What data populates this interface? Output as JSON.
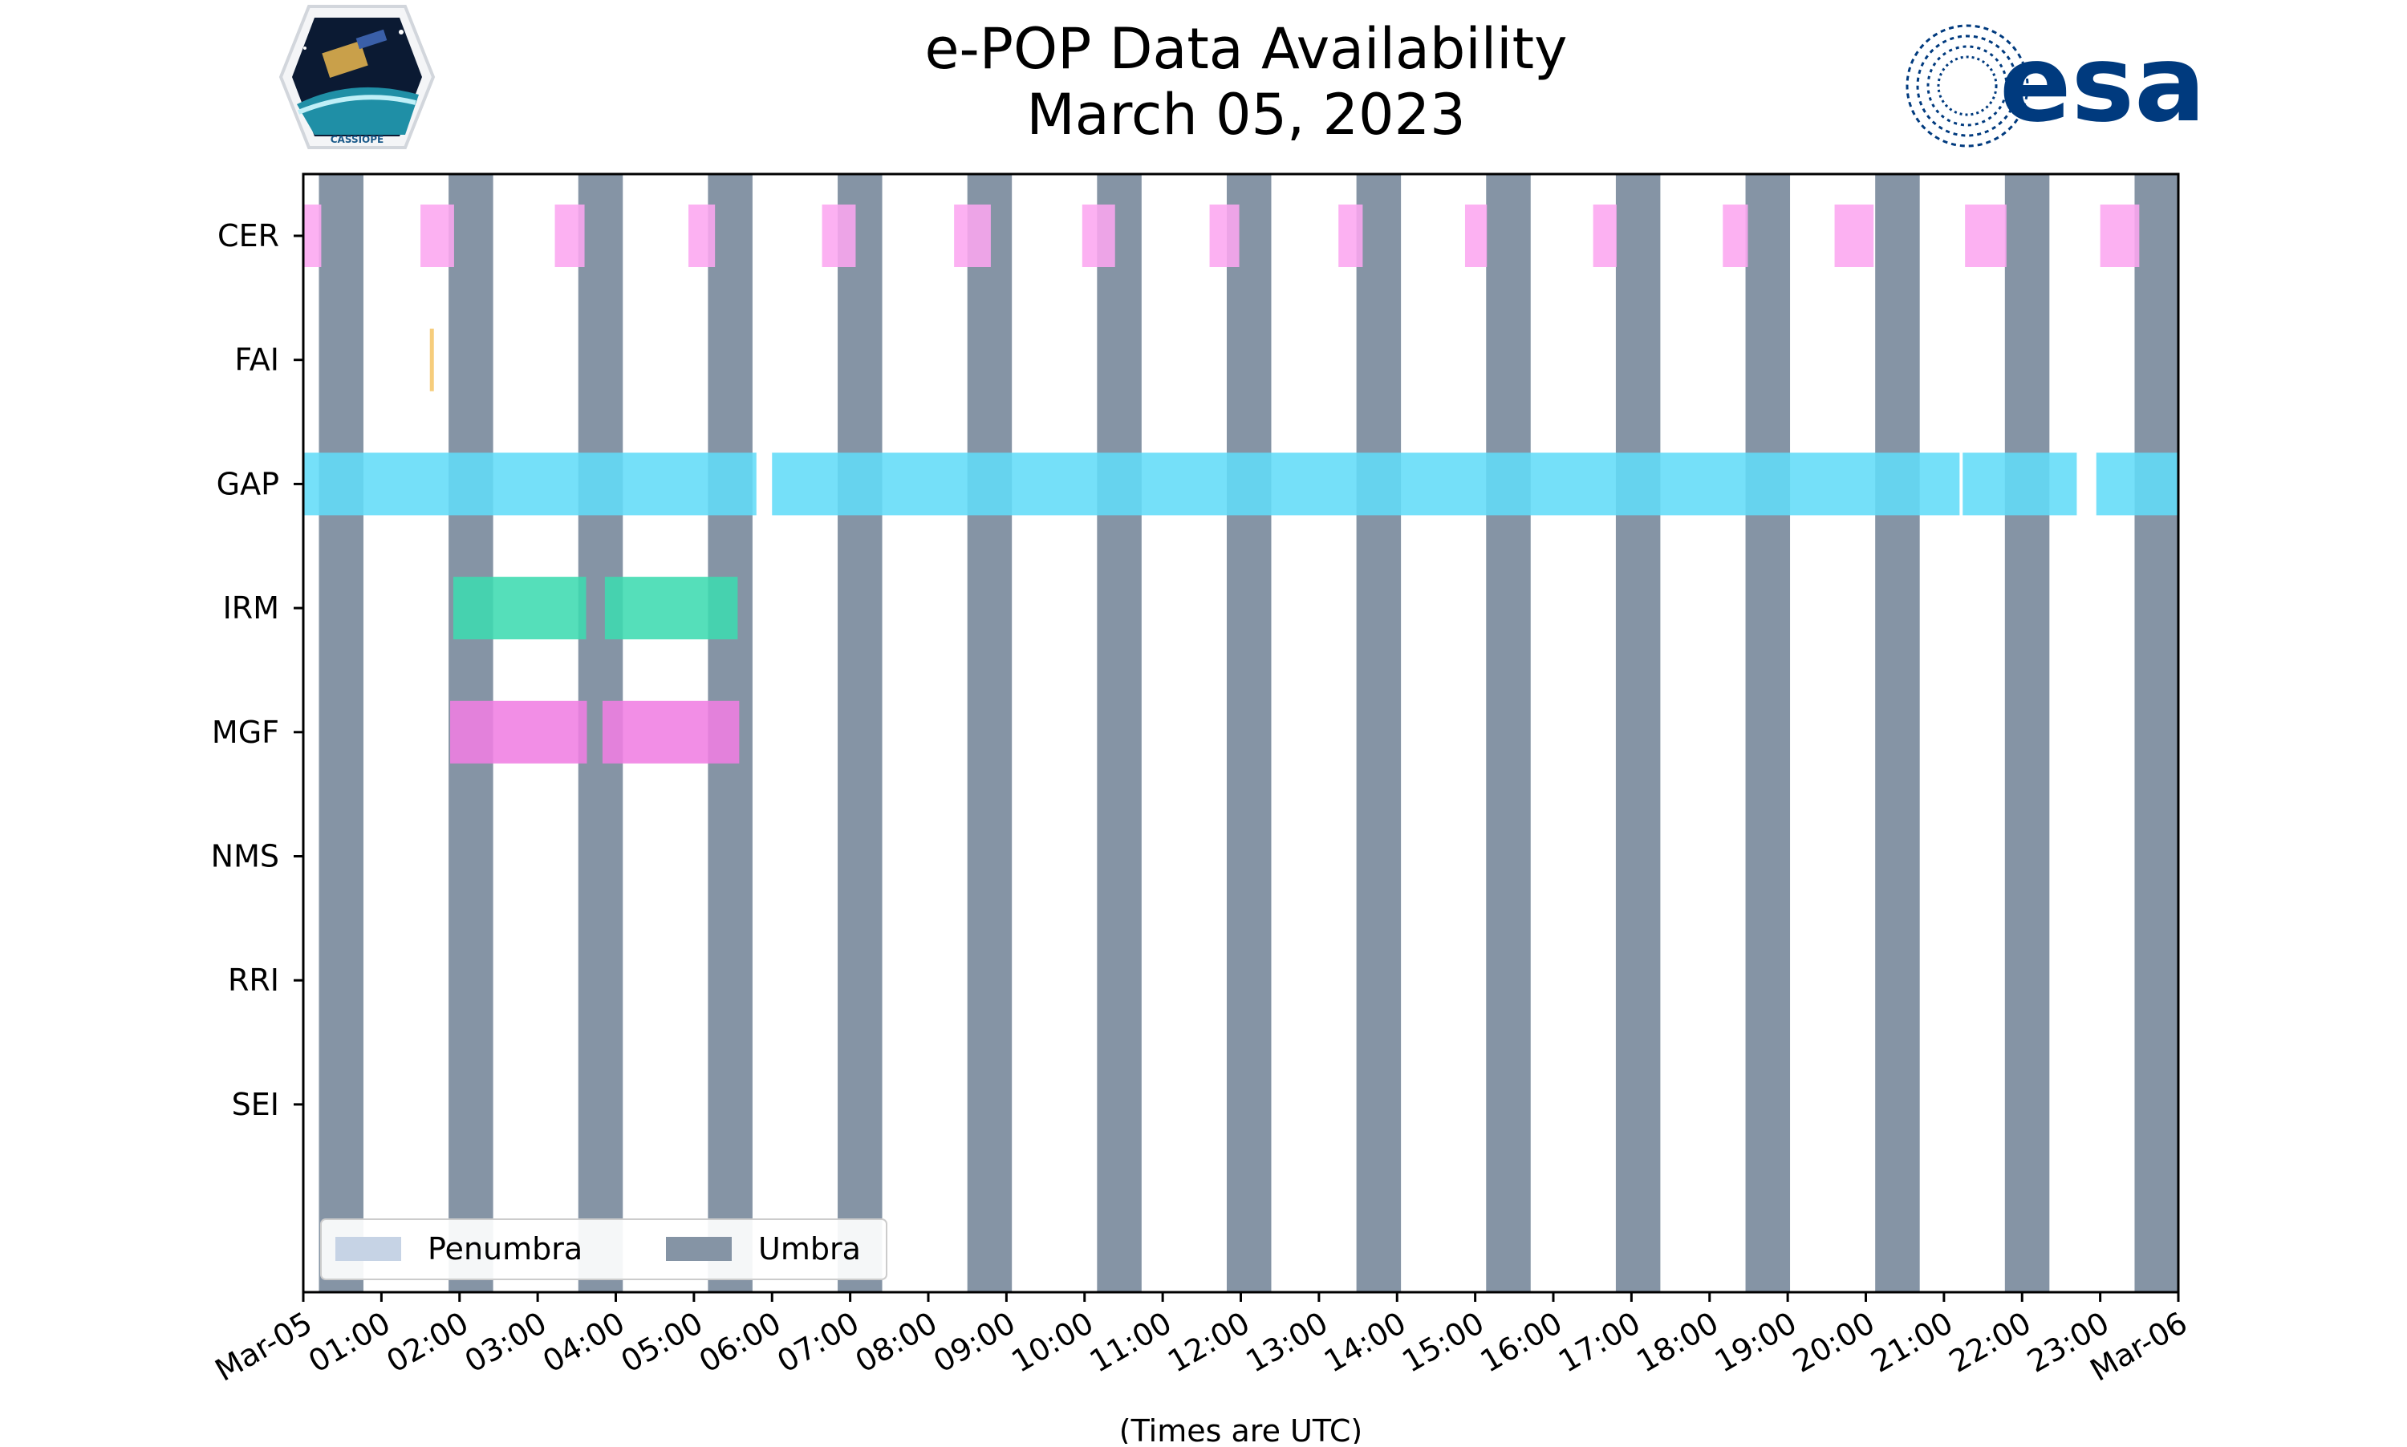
{
  "chart_data": {
    "type": "timeline",
    "title": [
      "e-POP Data Availability",
      "March 05, 2023"
    ],
    "xlabel": "(Times are UTC)",
    "xlim": [
      0,
      24
    ],
    "x_tick_labels": [
      "Mar-05",
      "01:00",
      "02:00",
      "03:00",
      "04:00",
      "05:00",
      "06:00",
      "07:00",
      "08:00",
      "09:00",
      "10:00",
      "11:00",
      "12:00",
      "13:00",
      "14:00",
      "15:00",
      "16:00",
      "17:00",
      "18:00",
      "19:00",
      "20:00",
      "21:00",
      "22:00",
      "23:00",
      "Mar-06"
    ],
    "categories": [
      "CER",
      "FAI",
      "GAP",
      "IRM",
      "MGF",
      "NMS",
      "RRI",
      "SEI"
    ],
    "colors": {
      "CER": "#fca6f0",
      "FAI": "#f5c66a",
      "GAP": "#62dcf8",
      "IRM": "#3ddbb0",
      "MGF": "#f07ee2",
      "umbra": "#8594a5",
      "penumbra": "#c6d3e5"
    },
    "umbra_intervals_hours": [
      [
        0.2,
        0.77
      ],
      [
        1.86,
        2.43
      ],
      [
        3.52,
        4.09
      ],
      [
        5.18,
        5.75
      ],
      [
        6.84,
        7.41
      ],
      [
        8.5,
        9.07
      ],
      [
        10.16,
        10.73
      ],
      [
        11.82,
        12.39
      ],
      [
        13.48,
        14.05
      ],
      [
        15.14,
        15.71
      ],
      [
        16.8,
        17.37
      ],
      [
        18.46,
        19.03
      ],
      [
        20.12,
        20.69
      ],
      [
        21.78,
        22.35
      ],
      [
        23.44,
        24.0
      ]
    ],
    "series": [
      {
        "name": "CER",
        "intervals_hours": [
          [
            0.0,
            0.23
          ],
          [
            1.5,
            1.93
          ],
          [
            3.22,
            3.6
          ],
          [
            4.93,
            5.27
          ],
          [
            6.64,
            7.07
          ],
          [
            8.33,
            8.8
          ],
          [
            9.97,
            10.39
          ],
          [
            11.6,
            11.98
          ],
          [
            13.25,
            13.56
          ],
          [
            14.87,
            15.15
          ],
          [
            16.51,
            16.81
          ],
          [
            18.17,
            18.49
          ],
          [
            19.6,
            20.1
          ],
          [
            21.27,
            21.8
          ],
          [
            23.0,
            23.5
          ]
        ]
      },
      {
        "name": "FAI",
        "intervals_hours": [
          [
            1.62,
            1.66
          ]
        ]
      },
      {
        "name": "GAP",
        "intervals_hours": [
          [
            0.0,
            5.8
          ],
          [
            6.0,
            21.2
          ],
          [
            21.24,
            22.7
          ],
          [
            22.95,
            24.0
          ]
        ]
      },
      {
        "name": "IRM",
        "intervals_hours": [
          [
            1.92,
            3.62
          ],
          [
            3.86,
            5.56
          ]
        ]
      },
      {
        "name": "MGF",
        "intervals_hours": [
          [
            1.88,
            3.63
          ],
          [
            3.83,
            5.58
          ]
        ]
      },
      {
        "name": "NMS",
        "intervals_hours": []
      },
      {
        "name": "RRI",
        "intervals_hours": []
      },
      {
        "name": "SEI",
        "intervals_hours": []
      }
    ],
    "legend": {
      "location": "lower-left",
      "entries": [
        {
          "key": "penumbra",
          "label": "Penumbra"
        },
        {
          "key": "umbra",
          "label": "Umbra"
        }
      ]
    }
  },
  "logos": {
    "cassiope_text": "CASSIOPE",
    "esa_text": "esa"
  }
}
